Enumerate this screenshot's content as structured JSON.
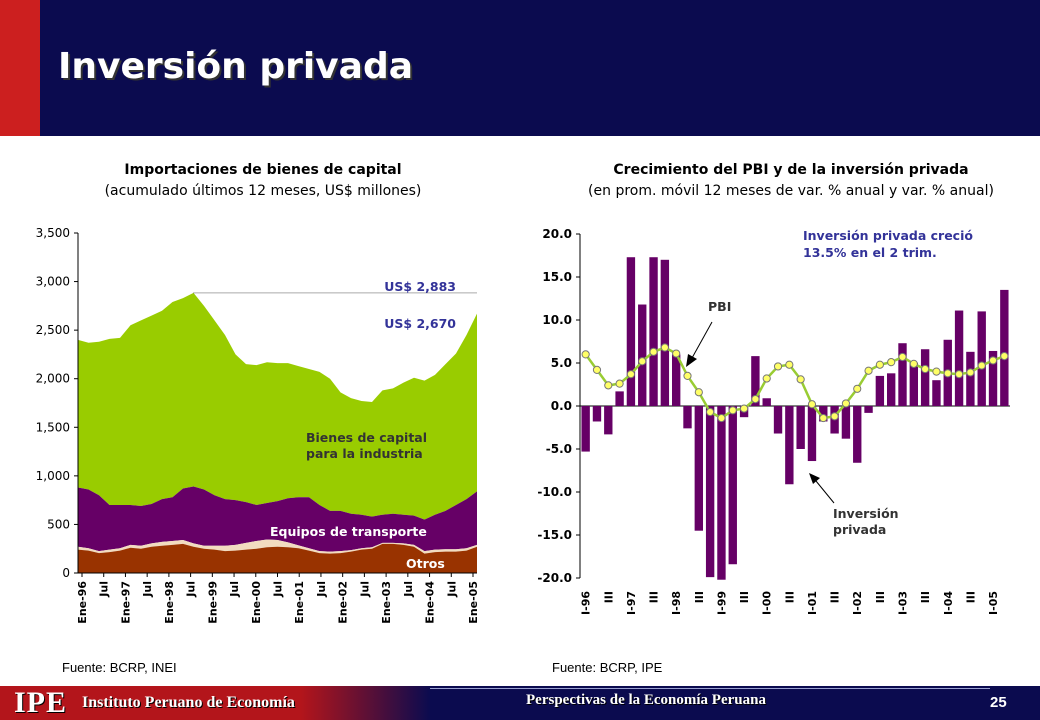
{
  "slide": {
    "title": "Inversión privada",
    "footer_institute": "Instituto Peruano de Economía",
    "footer_logo": "IPE",
    "footer_center": "Perspectivas de la Economía Peruana",
    "page_number": "25"
  },
  "left": {
    "title": "Importaciones de bienes de capital",
    "subtitle": "(acumulado últimos 12 meses, US$ millones)",
    "source": "Fuente: BCRP, INEI"
  },
  "right": {
    "title": "Crecimiento  del PBI y de la inversión privada",
    "subtitle": "(en prom. móvil 12 meses de var. % anual y var. % anual)",
    "source": "Fuente: BCRP, IPE"
  },
  "colors": {
    "bienes": "#99cc00",
    "equipos": "#660066",
    "otros_light": "#f2dcc0",
    "otros": "#993300",
    "bar": "#660066",
    "line": "#99cc33",
    "marker": "#ffff66",
    "annotation_text": "#333399"
  },
  "chart_data": [
    {
      "type": "area",
      "stacked": true,
      "ylim": [
        0,
        3500
      ],
      "yticks": [
        "0",
        "500",
        "1,000",
        "1,500",
        "2,000",
        "2,500",
        "3,000",
        "3,500"
      ],
      "ytick_values": [
        0,
        500,
        1000,
        1500,
        2000,
        2500,
        3000,
        3500
      ],
      "xtick_labels": [
        "Ene-96",
        "Jul",
        "Ene-97",
        "Jul",
        "Ene-98",
        "Jul",
        "Ene-99",
        "Jul",
        "Ene-00",
        "Jul",
        "Ene-01",
        "Jul",
        "Ene-02",
        "Jul",
        "Ene-03",
        "Jul",
        "Ene-04",
        "Jul",
        "Ene-05"
      ],
      "annotations": {
        "peak": "US$ 2,883",
        "current": "US$ 2,670",
        "peak_value": 2883
      },
      "series_labels": {
        "bienes": "Bienes de capital para la industria",
        "equipos": "Equipos de transporte",
        "otros": "Otros"
      },
      "x": [
        "Ene-96",
        "Abr-96",
        "Jul-96",
        "Oct-96",
        "Ene-97",
        "Abr-97",
        "Jul-97",
        "Oct-97",
        "Ene-98",
        "Abr-98",
        "Jul-98",
        "Oct-98",
        "Ene-99",
        "Abr-99",
        "Jul-99",
        "Oct-99",
        "Ene-00",
        "Abr-00",
        "Jul-00",
        "Oct-00",
        "Ene-01",
        "Abr-01",
        "Jul-01",
        "Oct-01",
        "Ene-02",
        "Abr-02",
        "Jul-02",
        "Oct-02",
        "Ene-03",
        "Abr-03",
        "Jul-03",
        "Oct-03",
        "Ene-04",
        "Abr-04",
        "Jul-04",
        "Oct-04",
        "Ene-05",
        "Abr-05",
        "Jul-05"
      ],
      "totals": [
        2400,
        2370,
        2380,
        2410,
        2420,
        2550,
        2600,
        2650,
        2700,
        2790,
        2830,
        2883,
        2750,
        2600,
        2450,
        2250,
        2150,
        2140,
        2170,
        2160,
        2160,
        2130,
        2100,
        2070,
        2000,
        1860,
        1800,
        1770,
        1760,
        1880,
        1900,
        1960,
        2010,
        1980,
        2040,
        2150,
        2260,
        2450,
        2670
      ],
      "otros": [
        240,
        230,
        205,
        215,
        230,
        260,
        250,
        270,
        280,
        290,
        300,
        270,
        250,
        240,
        225,
        230,
        240,
        250,
        265,
        270,
        265,
        255,
        230,
        205,
        200,
        205,
        220,
        240,
        250,
        300,
        300,
        290,
        270,
        200,
        215,
        220,
        220,
        230,
        270
      ],
      "otros_light": [
        30,
        25,
        20,
        25,
        25,
        30,
        30,
        35,
        40,
        40,
        40,
        35,
        30,
        40,
        55,
        60,
        70,
        80,
        80,
        70,
        50,
        30,
        25,
        20,
        20,
        20,
        15,
        15,
        15,
        10,
        10,
        15,
        20,
        25,
        25,
        25,
        25,
        25,
        20
      ],
      "equipos_top": [
        880,
        860,
        800,
        700,
        700,
        700,
        690,
        710,
        760,
        780,
        870,
        890,
        860,
        800,
        760,
        750,
        730,
        700,
        720,
        740,
        770,
        780,
        780,
        700,
        640,
        640,
        610,
        600,
        580,
        600,
        610,
        600,
        590,
        550,
        600,
        640,
        700,
        760,
        840
      ]
    },
    {
      "type": "bar",
      "ylim": [
        -20,
        20
      ],
      "yticks": [
        "20.0",
        "15.0",
        "10.0",
        "5.0",
        "0.0",
        "-5.0",
        "-10.0",
        "-15.0",
        "-20.0"
      ],
      "ytick_values": [
        20,
        15,
        10,
        5,
        0,
        -5,
        -10,
        -15,
        -20
      ],
      "categories": [
        "I-96",
        "II",
        "III",
        "IV",
        "I-97",
        "II",
        "III",
        "IV",
        "I-98",
        "II",
        "III",
        "IV",
        "I-99",
        "II",
        "III",
        "IV",
        "I-00",
        "II",
        "III",
        "IV",
        "I-01",
        "II",
        "III",
        "IV",
        "I-02",
        "II",
        "III",
        "IV",
        "I-03",
        "II",
        "III",
        "IV",
        "I-04",
        "II",
        "III",
        "IV",
        "I-05",
        "II"
      ],
      "xtick_labels": [
        "I-96",
        "III",
        "I-97",
        "III",
        "I-98",
        "III",
        "I-99",
        "III",
        "I-00",
        "III",
        "I-01",
        "III",
        "I-02",
        "III",
        "I-03",
        "III",
        "I-04",
        "III",
        "I-05"
      ],
      "series": [
        {
          "name": "Inversión privada",
          "kind": "bar",
          "values": [
            -5.3,
            -1.8,
            -3.3,
            1.7,
            17.3,
            11.8,
            17.3,
            17.0,
            6.0,
            -2.6,
            -14.5,
            -19.9,
            -20.2,
            -18.4,
            -1.3,
            5.8,
            0.9,
            -3.2,
            -9.1,
            -5.0,
            -6.4,
            -1.8,
            -3.2,
            -3.8,
            -6.6,
            -0.8,
            3.5,
            3.8,
            7.3,
            5.0,
            6.6,
            3.0,
            7.7,
            11.1,
            6.3,
            11.0,
            6.4,
            13.5
          ]
        },
        {
          "name": "PBI",
          "kind": "line",
          "values": [
            6.0,
            4.2,
            2.4,
            2.6,
            3.7,
            5.2,
            6.3,
            6.8,
            6.1,
            3.5,
            1.6,
            -0.7,
            -1.4,
            -0.5,
            -0.3,
            0.8,
            3.2,
            4.6,
            4.8,
            3.1,
            0.2,
            -1.4,
            -1.2,
            0.3,
            2.0,
            4.1,
            4.8,
            5.1,
            5.7,
            4.9,
            4.3,
            4.0,
            3.8,
            3.7,
            3.9,
            4.7,
            5.3,
            5.8
          ]
        }
      ],
      "annotations": {
        "note": "Inversión privada creció 13.5% en el 2 trim.",
        "pbi_label": "PBI",
        "inv_label": "Inversión privada"
      }
    }
  ]
}
